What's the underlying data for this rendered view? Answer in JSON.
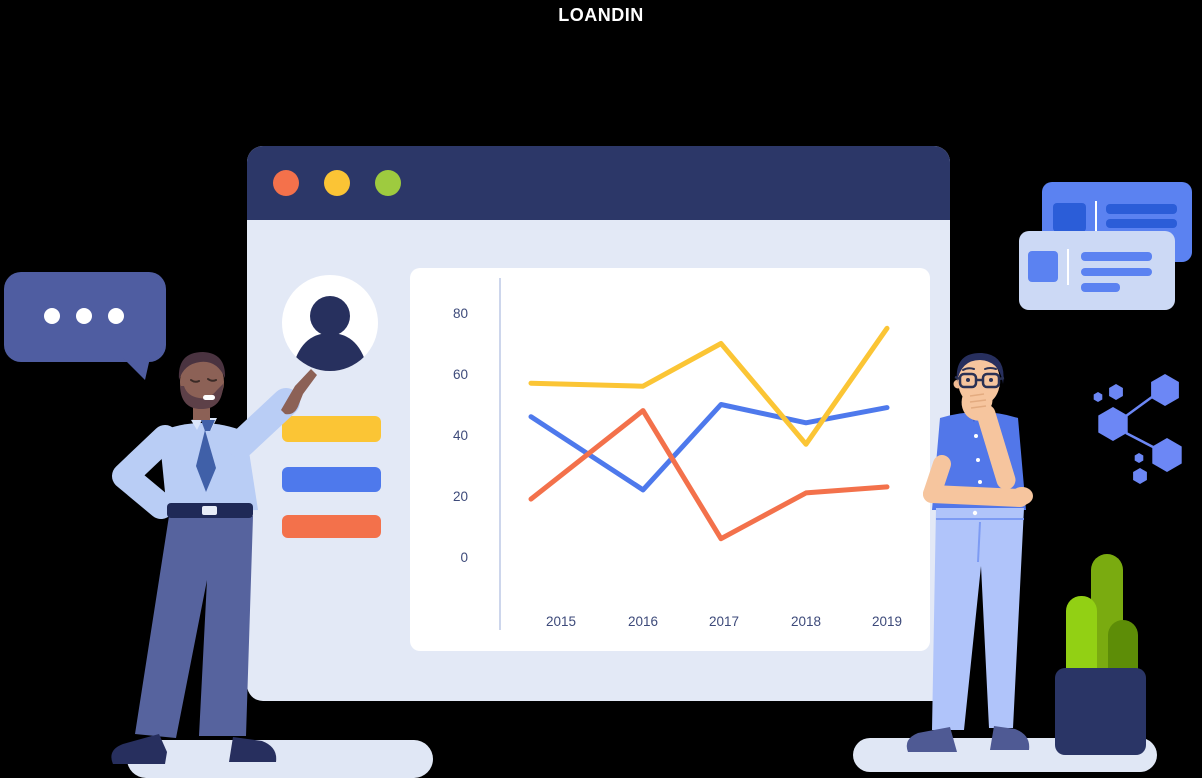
{
  "page": {
    "background_color": "#000000",
    "title": "LOANDIN",
    "title_color": "#ffffff"
  },
  "browser_window": {
    "header_color": "#2c3768",
    "body_color": "#e3e9f6",
    "window_controls": [
      {
        "name": "close",
        "color": "#f4714b"
      },
      {
        "name": "minimize",
        "color": "#fbc435"
      },
      {
        "name": "maximize",
        "color": "#9ecb3f"
      }
    ],
    "profile_panel": {
      "avatar_bg": "#ffffff",
      "avatar_icon_color": "#27305e",
      "skeleton_bars": [
        {
          "color": "#fbc535"
        },
        {
          "color": "#4e79ec"
        },
        {
          "color": "#f3714b"
        }
      ]
    }
  },
  "chart_data": {
    "type": "line",
    "title": "",
    "xlabel": "",
    "ylabel": "",
    "categories": [
      "2015",
      "2016",
      "2017",
      "2018",
      "2019"
    ],
    "y_ticks": [
      80,
      60,
      40,
      20,
      0
    ],
    "ylim": [
      0,
      85
    ],
    "grid": false,
    "legend": "none",
    "background": "#ffffff",
    "axis_color": "#cdd6ec",
    "tick_label_color": "#3d4a7a",
    "series": [
      {
        "name": "blue",
        "color": "#4e79ec",
        "values": [
          46,
          22,
          50,
          44,
          49
        ]
      },
      {
        "name": "orange",
        "color": "#f3714b",
        "values": [
          19,
          48,
          6,
          21,
          23
        ]
      },
      {
        "name": "yellow",
        "color": "#fbc535",
        "values": [
          57,
          56,
          70,
          37,
          75
        ]
      }
    ]
  },
  "decorations": {
    "speech_bubble": {
      "color": "#4f5da1",
      "dot_color": "#ffffff",
      "dot_count": 3
    },
    "floating_cards": {
      "back_card_color": "#5b82f1",
      "back_card_accent": "#2b5dd8",
      "front_card_color": "#ccd9f5",
      "front_card_accent": "#5b82f1",
      "divider_color": "#ffffff"
    },
    "hexagon_network": {
      "color": "#6c87f5"
    },
    "plant": {
      "pot_color": "#2a3566",
      "stalk_colors": [
        "#92d014",
        "#7aab10",
        "#5d8d07"
      ]
    },
    "ground_color": "#e0e7f5",
    "left_person": {
      "pose": "pointing-at-dashboard",
      "shirt_color": "#b9cdf5",
      "tie_color": "#4060a8",
      "pants_color": "#56639e",
      "skin_color": "#8c6156",
      "hair_color": "#4a3340",
      "shoe_color": "#272f5e"
    },
    "right_person": {
      "pose": "thinking-hand-on-chin",
      "shirt_color": "#5277e9",
      "pants_color": "#b0c4fa",
      "skin_color": "#f6c59e",
      "hair_color": "#272f5e",
      "shoe_color": "#4f5a94"
    }
  }
}
